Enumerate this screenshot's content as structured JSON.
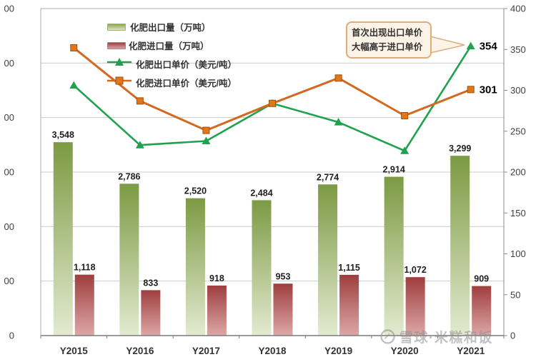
{
  "legend": {
    "items": [
      {
        "label": "化肥出口量（万吨）"
      },
      {
        "label": "化肥进口量（万吨）"
      },
      {
        "label": "化肥出口单价（美元/吨）"
      },
      {
        "label": "化肥进口单价（美元/吨）"
      }
    ]
  },
  "annotation": {
    "line1": "首次出现出口单价",
    "line2": "大幅高于进口单价"
  },
  "watermark": {
    "text": "雪球·米糕和饭"
  },
  "chart_data": {
    "type": "combo (bar + line, dual axis)",
    "categories": [
      "Y2015",
      "Y2016",
      "Y2017",
      "Y2018",
      "Y2019",
      "Y2020",
      "Y2021"
    ],
    "bar_series": [
      {
        "name": "化肥出口量（万吨）",
        "axis": "left",
        "values": [
          3548,
          2786,
          2520,
          2484,
          2774,
          2914,
          3299
        ],
        "labels": [
          "3,548",
          "2,786",
          "2,520",
          "2,484",
          "2,774",
          "2,914",
          "3,299"
        ],
        "color_top": "#7c9a43",
        "color_bottom": "#e3ead0"
      },
      {
        "name": "化肥进口量（万吨）",
        "axis": "left",
        "values": [
          1118,
          833,
          918,
          953,
          1115,
          1072,
          909
        ],
        "labels": [
          "1,118",
          "833",
          "918",
          "953",
          "1,115",
          "1,072",
          "909"
        ],
        "color_top": "#9e3e3e",
        "color_bottom": "#dda7a7"
      }
    ],
    "line_series": [
      {
        "name": "化肥出口单价（美元/吨）",
        "axis": "right",
        "values": [
          306,
          233,
          238,
          284,
          261,
          226,
          354
        ],
        "color": "#1fa14e",
        "marker": "triangle",
        "last_label": "354"
      },
      {
        "name": "化肥进口单价（美元/吨）",
        "axis": "right",
        "values": [
          352,
          287,
          251,
          284,
          315,
          269,
          301
        ],
        "color": "#d2691f",
        "marker": "square",
        "last_label": "301"
      }
    ],
    "left_axis": {
      "min": 0,
      "max": 6000,
      "step": 1000,
      "visible_label_fragments": [
        "00",
        "00",
        "00",
        "00",
        "00",
        "00",
        "0"
      ]
    },
    "right_axis": {
      "min": 0,
      "max": 400,
      "step": 50,
      "ticks": [
        "400",
        "350",
        "300",
        "250",
        "200",
        "150",
        "100",
        "50",
        "0"
      ]
    },
    "grid": true,
    "legend_position": "top-left",
    "annotation_text": "首次出现出口单价 大幅高于进口单价"
  }
}
